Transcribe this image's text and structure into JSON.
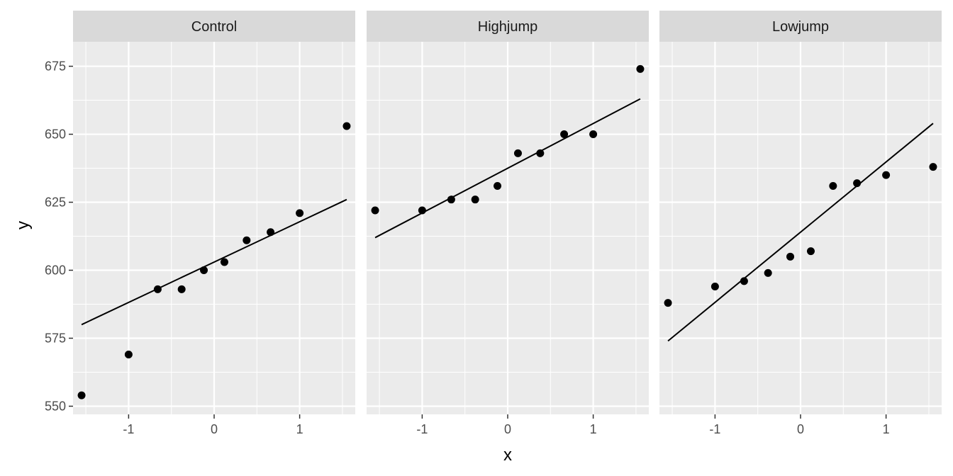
{
  "chart_data": {
    "type": "scatter",
    "xlabel": "x",
    "ylabel": "y",
    "xlim": [
      -1.65,
      1.65
    ],
    "ylim": [
      547,
      684
    ],
    "x_ticks": [
      -1,
      0,
      1
    ],
    "x_tick_labels": [
      "-1",
      "0",
      "1"
    ],
    "y_ticks": [
      550,
      575,
      600,
      625,
      650,
      675
    ],
    "y_tick_labels": [
      "550",
      "575",
      "600",
      "625",
      "650",
      "675"
    ],
    "grid": true,
    "facets": [
      {
        "label": "Control",
        "points": {
          "x": [
            -1.55,
            -1.0,
            -0.66,
            -0.38,
            -0.12,
            0.12,
            0.38,
            0.66,
            1.0,
            1.55
          ],
          "y": [
            554,
            569,
            593,
            593,
            600,
            603,
            611,
            614,
            621,
            653
          ]
        },
        "fit_line": {
          "x": [
            -1.55,
            1.55
          ],
          "y": [
            580,
            626
          ]
        }
      },
      {
        "label": "Highjump",
        "points": {
          "x": [
            -1.55,
            -1.0,
            -0.66,
            -0.38,
            -0.12,
            0.12,
            0.38,
            0.66,
            1.0,
            1.55
          ],
          "y": [
            622,
            622,
            626,
            626,
            631,
            643,
            643,
            650,
            650,
            674
          ]
        },
        "fit_line": {
          "x": [
            -1.55,
            1.55
          ],
          "y": [
            612,
            663
          ]
        }
      },
      {
        "label": "Lowjump",
        "points": {
          "x": [
            -1.55,
            -1.0,
            -0.66,
            -0.38,
            -0.12,
            0.12,
            0.38,
            0.66,
            1.0,
            1.55
          ],
          "y": [
            588,
            594,
            596,
            599,
            605,
            607,
            631,
            632,
            635,
            638
          ]
        },
        "fit_line": {
          "x": [
            -1.55,
            1.55
          ],
          "y": [
            574,
            654
          ]
        }
      }
    ],
    "colors": {
      "panel_bg": "#ebebeb",
      "strip_bg": "#d9d9d9",
      "grid_major": "#ffffff",
      "points": "#000000",
      "line": "#000000"
    }
  }
}
